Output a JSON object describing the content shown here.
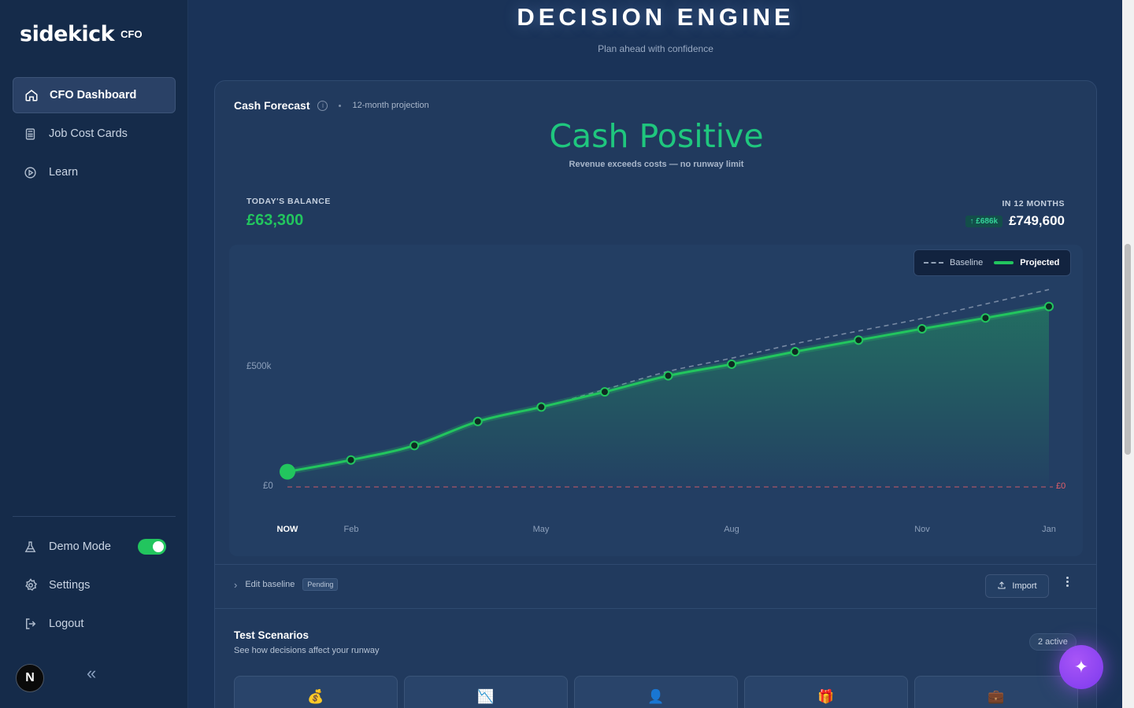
{
  "sidebar": {
    "logo_word": "sidekick",
    "logo_tag": "CFO",
    "items": [
      {
        "label": "CFO Dashboard",
        "icon": "home-icon"
      },
      {
        "label": "Job Cost Cards",
        "icon": "calculator-icon"
      },
      {
        "label": "Learn",
        "icon": "play-circle-icon"
      }
    ],
    "bottom_items": [
      {
        "label": "Demo Mode",
        "icon": "flask-icon"
      },
      {
        "label": "Settings",
        "icon": "gear-icon"
      },
      {
        "label": "Logout",
        "icon": "logout-icon"
      }
    ],
    "demo_mode_on": true,
    "avatar_letter": "N"
  },
  "header": {
    "title": "DECISION ENGINE",
    "subtitle": "Plan ahead with confidence"
  },
  "forecast": {
    "title": "Cash Forecast",
    "meta": "12-month projection",
    "status": "Cash Positive",
    "status_sub": "Revenue exceeds costs — no runway limit",
    "today_label": "TODAY'S BALANCE",
    "today_value": "£63,300",
    "future_label": "IN 12 MONTHS",
    "future_delta": "↑ £686k",
    "future_value": "£749,600",
    "legend_baseline": "Baseline",
    "legend_projected": "Projected",
    "zero_right": "£0",
    "edit_baseline": "Edit baseline",
    "pending": "Pending",
    "import": "Import"
  },
  "chart_data": {
    "type": "line",
    "x": [
      "NOW",
      "",
      "",
      "",
      "",
      "",
      "",
      "",
      "",
      "",
      "",
      "",
      "Jan"
    ],
    "x_tick_labels": [
      "NOW",
      "Feb",
      "May",
      "Aug",
      "Nov",
      "Jan"
    ],
    "y_tick_labels": [
      "£500k",
      "£0"
    ],
    "ylim": [
      0,
      760000
    ],
    "series": [
      {
        "name": "Projected",
        "values": [
          63300,
          112000,
          172000,
          272000,
          332000,
          395000,
          462000,
          510000,
          562000,
          610000,
          657000,
          702000,
          749600
        ]
      },
      {
        "name": "Baseline",
        "values": [
          63300,
          112000,
          172000,
          272000,
          332000,
          405000,
          480000,
          535000,
          595000,
          648000,
          700000,
          760000,
          820000
        ]
      }
    ],
    "colors": {
      "projected": "#22c55e",
      "baseline": "#94a3b8",
      "zero_line": "#e45f6a"
    }
  },
  "scenarios": {
    "title": "Test Scenarios",
    "subtitle": "See how decisions affect your runway",
    "active_count": "2 active",
    "cards": [
      {
        "emoji": "💰"
      },
      {
        "emoji": "📉"
      },
      {
        "emoji": "👤"
      },
      {
        "emoji": "🎁"
      },
      {
        "emoji": "💼"
      }
    ]
  },
  "fab_icon": "sparkle-icon"
}
